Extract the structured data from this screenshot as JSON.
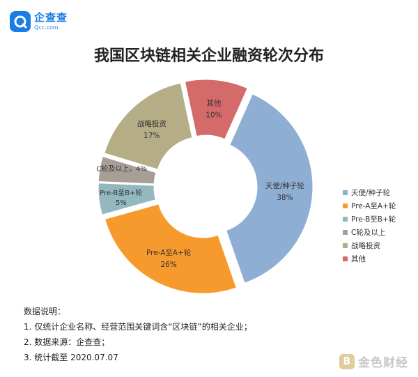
{
  "header": {
    "logo_name": "企查查",
    "logo_url": "Qcc.com"
  },
  "chart_data": {
    "type": "pie",
    "style": "donut",
    "title": "我国区块链相关企业融资轮次分布",
    "legend_position": "right",
    "slices": [
      {
        "label": "天使/种子轮",
        "value": 38,
        "value_label": "38%",
        "color": "#8faed4"
      },
      {
        "label": "Pre-A至A+轮",
        "value": 26,
        "value_label": "26%",
        "color": "#f79a2e"
      },
      {
        "label": "Pre-B至B+轮",
        "value": 5,
        "value_label": "5%",
        "color": "#93b8c0"
      },
      {
        "label": "C轮及以上",
        "value": 4,
        "value_label": "4%",
        "color": "#a79f96"
      },
      {
        "label": "战略投资",
        "value": 17,
        "value_label": "17%",
        "color": "#b4ad85"
      },
      {
        "label": "其他",
        "value": 10,
        "value_label": "10%",
        "color": "#d56a6a"
      }
    ]
  },
  "notes": {
    "heading": "数据说明：",
    "items": [
      "1. 仅统计企业名称、经营范围关键词含“区块链”的相关企业；",
      "2. 数据来源：企查查；",
      "3. 统计截至 2020.07.07"
    ]
  },
  "watermark": {
    "icon_char": "B",
    "text": "金色财经"
  }
}
